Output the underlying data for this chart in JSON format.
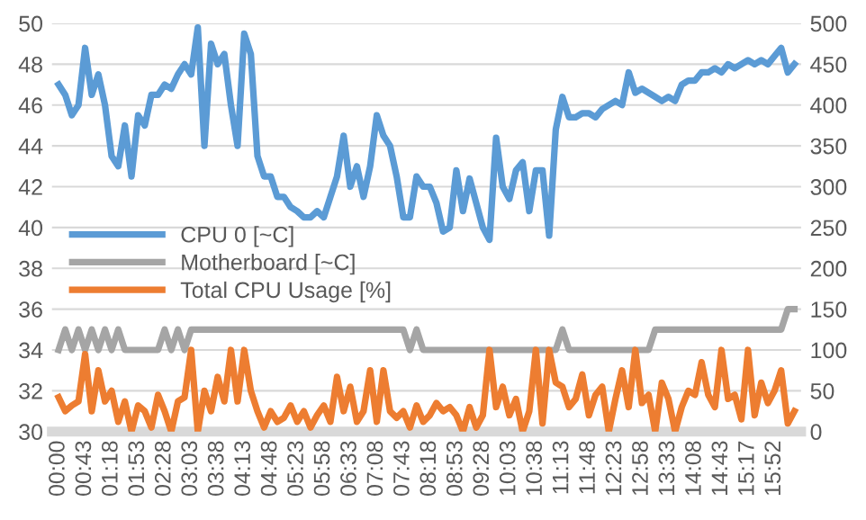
{
  "chart_data": {
    "type": "line",
    "categories": [
      "00:00",
      null,
      null,
      null,
      "00:43",
      null,
      null,
      null,
      "01:18",
      null,
      null,
      null,
      "01:53",
      null,
      null,
      null,
      "02:28",
      null,
      null,
      null,
      "03:03",
      null,
      null,
      null,
      "03:38",
      null,
      null,
      null,
      "04:13",
      null,
      null,
      null,
      "04:48",
      null,
      null,
      null,
      "05:23",
      null,
      null,
      null,
      "05:58",
      null,
      null,
      null,
      "06:33",
      null,
      null,
      null,
      "07:08",
      null,
      null,
      null,
      "07:43",
      null,
      null,
      null,
      "08:18",
      null,
      null,
      null,
      "08:53",
      null,
      null,
      null,
      "09:28",
      null,
      null,
      null,
      "10:03",
      null,
      null,
      null,
      "10:38",
      null,
      null,
      null,
      "11:13",
      null,
      null,
      null,
      "11:48",
      null,
      null,
      null,
      "12:23",
      null,
      null,
      null,
      "12:58",
      null,
      null,
      null,
      "13:33",
      null,
      null,
      null,
      "14:08",
      null,
      null,
      null,
      "14:43",
      null,
      null,
      null,
      "15:17",
      null,
      null,
      null,
      "15:52",
      null,
      null,
      null
    ],
    "series": [
      {
        "name": "CPU 0 [~C]",
        "color": "#5b9bd5",
        "values": [
          47,
          46.5,
          45.5,
          46,
          48.8,
          46.5,
          47.5,
          46,
          43.5,
          43,
          45,
          42.5,
          45.5,
          45,
          46.5,
          46.5,
          47,
          46.8,
          47.5,
          48,
          47.5,
          49.8,
          44,
          49,
          48,
          48.5,
          46,
          44,
          49.5,
          48.5,
          43.5,
          42.5,
          42.5,
          41.5,
          41.5,
          41,
          40.8,
          40.5,
          40.5,
          40.8,
          40.5,
          41.5,
          42.5,
          44.5,
          42,
          43,
          41.5,
          43,
          45.5,
          44.5,
          44,
          42.5,
          40.5,
          40.5,
          42.5,
          42,
          42,
          41.2,
          39.8,
          40,
          42.8,
          40.8,
          42.4,
          41.2,
          40,
          39.4,
          44.4,
          42,
          41.4,
          42.8,
          43.2,
          40.8,
          42.8,
          42.8,
          39.6,
          44.8,
          46.4,
          45.4,
          45.4,
          45.6,
          45.6,
          45.4,
          45.8,
          46,
          46.2,
          46,
          47.6,
          46.6,
          46.8,
          46.6,
          46.4,
          46.2,
          46.4,
          46.2,
          47,
          47.2,
          47.2,
          47.6,
          47.6,
          47.8,
          47.6,
          48,
          47.8,
          48,
          48.2,
          48,
          48.2,
          48,
          48.4,
          48.8,
          47.6,
          48
        ]
      },
      {
        "name": "Motherboard [~C]",
        "color": "#a5a5a5",
        "values": [
          34,
          35,
          34,
          35,
          34,
          35,
          34,
          35,
          34,
          35,
          34,
          34,
          34,
          34,
          34,
          34,
          35,
          34,
          35,
          34,
          35,
          35,
          35,
          35,
          35,
          35,
          35,
          35,
          35,
          35,
          35,
          35,
          35,
          35,
          35,
          35,
          35,
          35,
          35,
          35,
          35,
          35,
          35,
          35,
          35,
          35,
          35,
          35,
          35,
          35,
          35,
          35,
          35,
          34,
          35,
          34,
          34,
          34,
          34,
          34,
          34,
          34,
          34,
          34,
          34,
          34,
          34,
          34,
          34,
          34,
          34,
          34,
          34,
          34,
          34,
          34,
          35,
          34,
          34,
          34,
          34,
          34,
          34,
          34,
          34,
          34,
          34,
          34,
          34,
          34,
          35,
          35,
          35,
          35,
          35,
          35,
          35,
          35,
          35,
          35,
          35,
          35,
          35,
          35,
          35,
          35,
          35,
          35,
          35,
          35,
          36,
          36
        ]
      },
      {
        "name": "Total CPU Usage [%]",
        "color": "#ed7d31",
        "axis": "y2",
        "values": [
          42,
          25,
          32,
          37,
          95,
          25,
          75,
          37,
          50,
          12,
          37,
          0,
          32,
          25,
          5,
          45,
          25,
          0,
          37,
          42,
          100,
          0,
          50,
          25,
          67,
          37,
          100,
          37,
          100,
          50,
          25,
          5,
          25,
          12,
          17,
          32,
          12,
          25,
          5,
          20,
          32,
          12,
          67,
          25,
          55,
          12,
          25,
          75,
          12,
          75,
          25,
          17,
          25,
          5,
          32,
          12,
          20,
          35,
          25,
          30,
          20,
          0,
          30,
          5,
          20,
          100,
          30,
          55,
          20,
          40,
          0,
          25,
          100,
          10,
          100,
          60,
          55,
          30,
          40,
          70,
          20,
          45,
          55,
          0,
          40,
          75,
          30,
          100,
          35,
          45,
          0,
          60,
          40,
          0,
          30,
          50,
          45,
          85,
          45,
          30,
          100,
          40,
          45,
          15,
          100,
          20,
          60,
          35,
          50,
          75,
          10,
          25
        ]
      }
    ],
    "ylim": [
      30,
      50
    ],
    "yticks": [
      30,
      32,
      34,
      36,
      38,
      40,
      42,
      44,
      46,
      48,
      50
    ],
    "y2lim": [
      0,
      500
    ],
    "y2ticks": [
      0,
      50,
      100,
      150,
      200,
      250,
      300,
      350,
      400,
      450,
      500
    ],
    "grid": "y",
    "legend": "left"
  }
}
